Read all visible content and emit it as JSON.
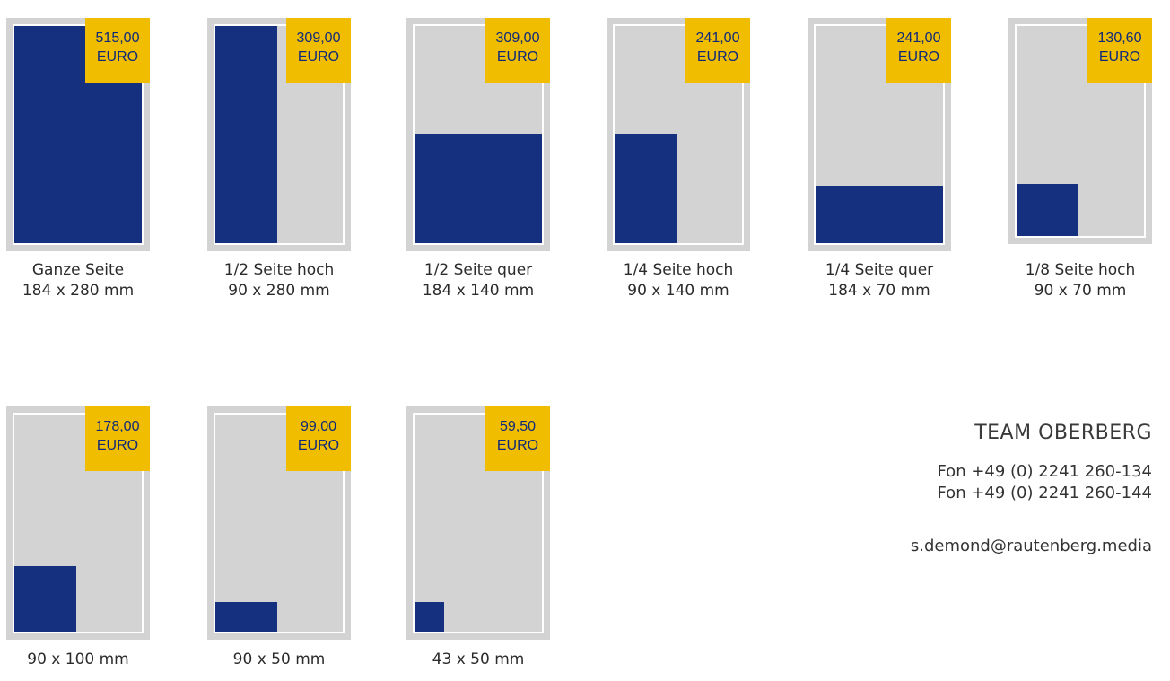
{
  "ads": [
    {
      "price": "515,00",
      "currency": "EURO",
      "name": "Ganze Seite",
      "size": "184 x 280 mm"
    },
    {
      "price": "309,00",
      "currency": "EURO",
      "name": "1/2 Seite hoch",
      "size": "90 x 280 mm"
    },
    {
      "price": "309,00",
      "currency": "EURO",
      "name": "1/2 Seite quer",
      "size": "184 x 140 mm"
    },
    {
      "price": "241,00",
      "currency": "EURO",
      "name": "1/4 Seite hoch",
      "size": "90 x 140 mm"
    },
    {
      "price": "241,00",
      "currency": "EURO",
      "name": "1/4 Seite quer",
      "size": "184 x 70 mm"
    },
    {
      "price": "130,60",
      "currency": "EURO",
      "name": "1/8 Seite hoch",
      "size": "90 x 70 mm"
    },
    {
      "price": "178,00",
      "currency": "EURO",
      "size": "90 x 100 mm"
    },
    {
      "price": "99,00",
      "currency": "EURO",
      "size": "90 x 50 mm"
    },
    {
      "price": "59,50",
      "currency": "EURO",
      "size": "43 x 50 mm"
    }
  ],
  "contact": {
    "team": "TEAM OBERBERG",
    "phone_1": "Fon +49 (0) 2241 260-134",
    "phone_2": "Fon +49 (0) 2241 260-144",
    "email": "s.demond@rautenberg.media"
  },
  "colors": {
    "ad_fill": "#15307f",
    "price_badge": "#f0bd00",
    "page_background": "#d3d3d3"
  }
}
